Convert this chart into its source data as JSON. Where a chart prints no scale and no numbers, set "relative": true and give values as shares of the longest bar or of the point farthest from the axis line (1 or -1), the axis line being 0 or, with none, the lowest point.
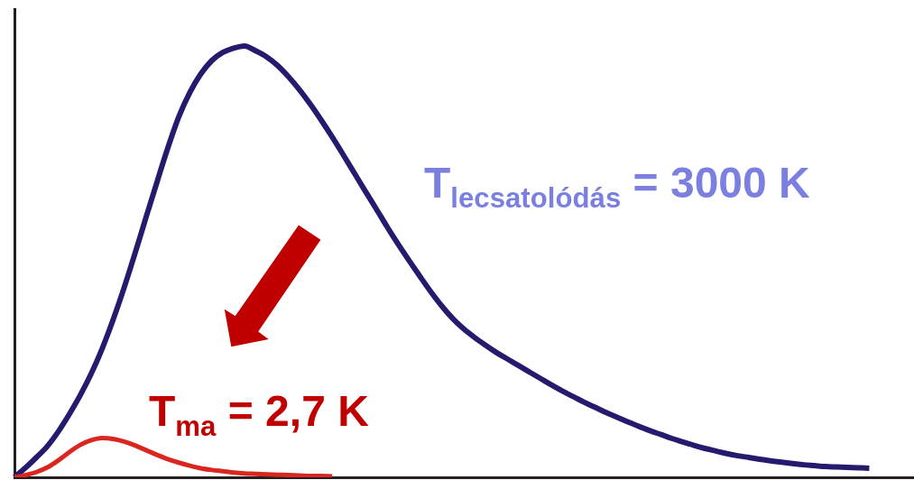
{
  "chart_data": {
    "type": "line",
    "relative": true,
    "marker": "none",
    "line_style": "solid",
    "categories": [
      null,
      null,
      null,
      null,
      null,
      null,
      null,
      null,
      null,
      null,
      null,
      null,
      null,
      null,
      null,
      null,
      null,
      null,
      null,
      null,
      null,
      null,
      null,
      null,
      null,
      null,
      null,
      null,
      null,
      null,
      null,
      null,
      null,
      null,
      null,
      null,
      null,
      null,
      null,
      null,
      null,
      null,
      null,
      null,
      null,
      null,
      null,
      null,
      null,
      null,
      null,
      null,
      null,
      null,
      null,
      null,
      null,
      null,
      null,
      null,
      null,
      null,
      null,
      null,
      null,
      null,
      null,
      null,
      null,
      null,
      null,
      null,
      null,
      null,
      null,
      null,
      null,
      null,
      null,
      null,
      null,
      null,
      null
    ],
    "series": [
      {
        "name": "T$_{lecsatolódás}$ = 3000 K",
        "color": "#241a6e",
        "values": [
          0,
          0.022,
          0.046,
          0.072,
          0.106,
          0.146,
          0.19,
          0.24,
          0.298,
          0.365,
          0.439,
          0.519,
          0.602,
          0.684,
          0.764,
          0.836,
          0.892,
          0.935,
          0.966,
          0.985,
          0.995,
          1,
          0.989,
          0.975,
          0.955,
          0.929,
          0.899,
          0.865,
          0.828,
          0.789,
          0.748,
          0.706,
          0.664,
          0.623,
          0.581,
          0.541,
          0.503,
          0.466,
          0.43,
          0.397,
          0.368,
          0.344,
          0.324,
          0.306,
          0.289,
          0.274,
          0.259,
          0.244,
          0.229,
          0.214,
          0.2,
          0.187,
          0.174,
          0.162,
          0.15,
          0.139,
          0.128,
          0.118,
          0.108,
          0.099,
          0.09,
          0.082,
          0.074,
          0.067,
          0.061,
          0.055,
          0.05,
          0.046,
          0.042,
          0.038,
          0.035,
          0.032,
          0.029,
          0.027,
          0.025,
          0.024,
          0.023,
          0.022,
          0.021,
          null,
          null,
          null,
          null
        ]
      },
      {
        "name": "T$_{ma}$ = 2,7 K",
        "color": "#d9261f",
        "values": [
          0,
          0.005,
          0.012,
          0.023,
          0.039,
          0.058,
          0.075,
          0.086,
          0.091,
          0.089,
          0.083,
          0.074,
          0.063,
          0.052,
          0.042,
          0.034,
          0.027,
          0.021,
          0.017,
          0.014,
          0.011,
          0.009,
          0.008,
          0.007,
          0.006,
          0.005,
          0.004,
          0.003,
          0.003,
          0.002,
          null,
          null,
          null,
          null,
          null,
          null,
          null,
          null,
          null,
          null,
          null,
          null,
          null,
          null,
          null,
          null,
          null,
          null,
          null,
          null,
          null,
          null,
          null,
          null,
          null,
          null,
          null,
          null,
          null,
          null,
          null,
          null,
          null,
          null,
          null,
          null,
          null,
          null,
          null,
          null,
          null,
          null,
          null,
          null,
          null,
          null,
          null,
          null,
          null,
          null,
          null,
          null,
          null
        ]
      }
    ]
  }
}
